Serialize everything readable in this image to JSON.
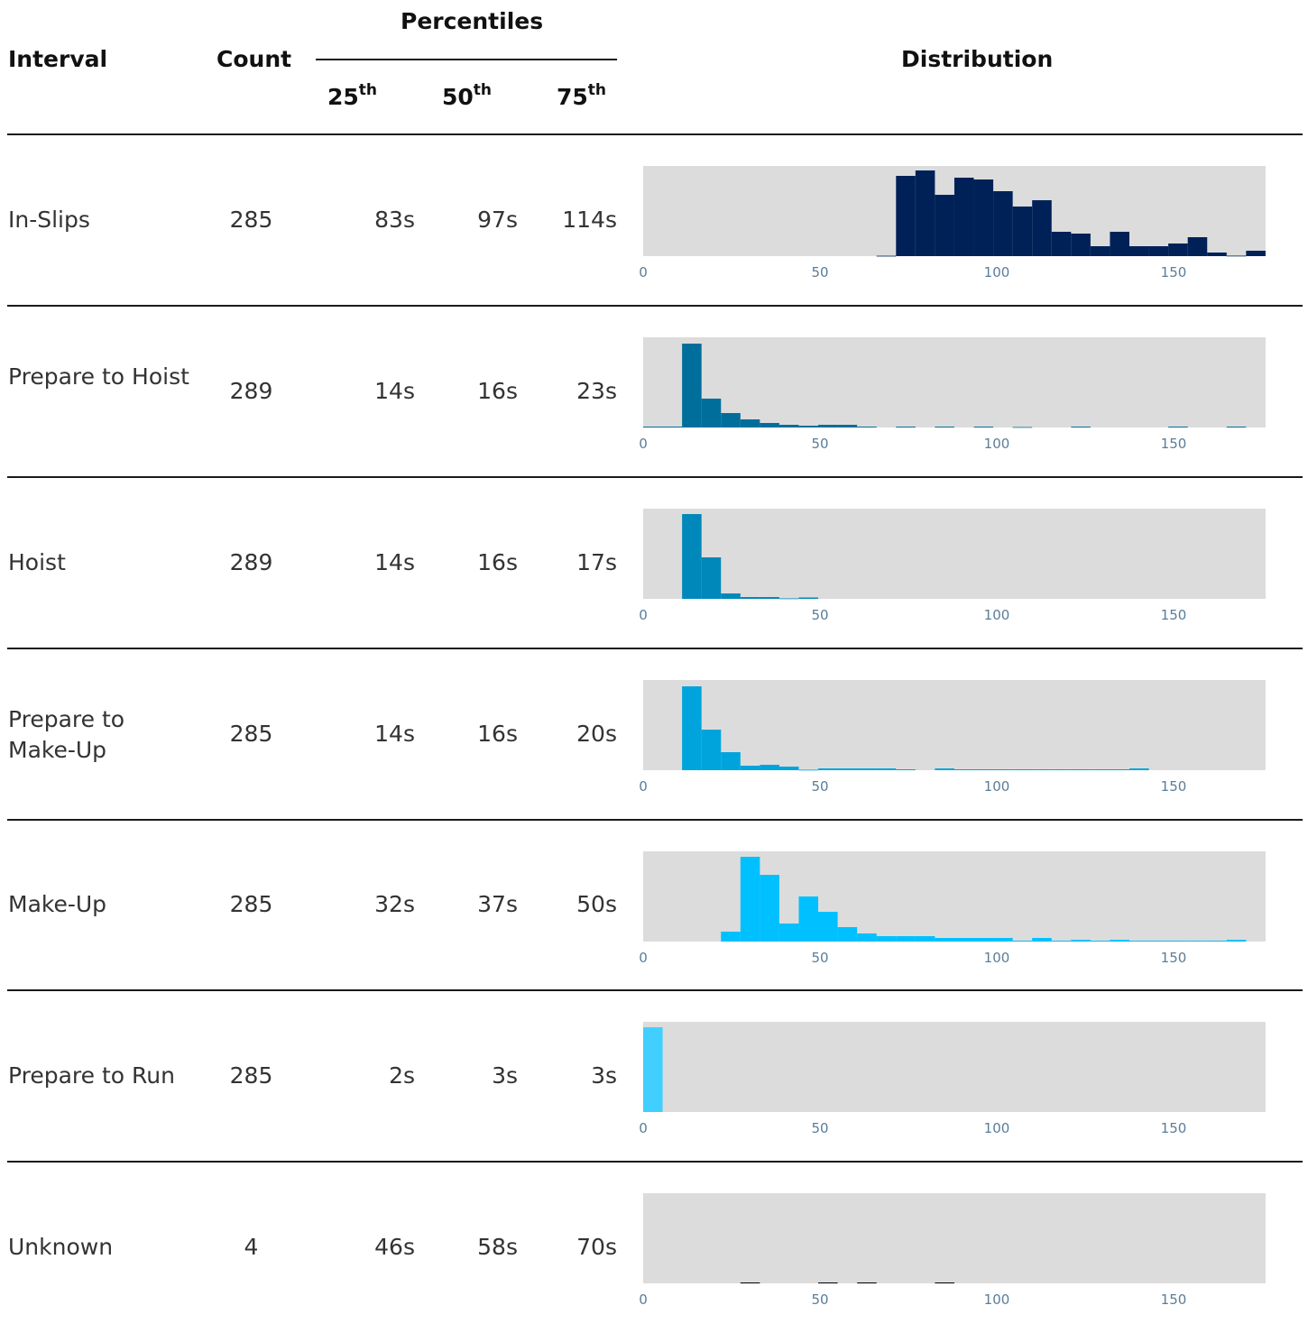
{
  "header": {
    "interval": "Interval",
    "count": "Count",
    "percentiles": "Percentiles",
    "p25_num": "25",
    "p25_sup": "th",
    "p50_num": "50",
    "p50_sup": "th",
    "p75_num": "75",
    "p75_sup": "th",
    "distribution": "Distribution"
  },
  "rows": [
    {
      "name": "In-Slips",
      "count": "285",
      "p25": "83s",
      "p50": "97s",
      "p75": "114s"
    },
    {
      "name": "Prepare to Hoist",
      "count": "289",
      "p25": "14s",
      "p50": "16s",
      "p75": "23s"
    },
    {
      "name": "Hoist",
      "count": "289",
      "p25": "14s",
      "p50": "16s",
      "p75": "17s"
    },
    {
      "name": "Prepare to Make-Up",
      "count": "285",
      "p25": "14s",
      "p50": "16s",
      "p75": "20s"
    },
    {
      "name": "Make-Up",
      "count": "285",
      "p25": "32s",
      "p50": "37s",
      "p75": "50s"
    },
    {
      "name": "Prepare to Run",
      "count": "285",
      "p25": "2s",
      "p50": "3s",
      "p75": "3s"
    },
    {
      "name": "Unknown",
      "count": "4",
      "p25": "46s",
      "p50": "58s",
      "p75": "70s"
    }
  ],
  "chart_data": [
    {
      "type": "bar",
      "title": "In-Slips",
      "color": "#002157",
      "bin_width": 5.5,
      "xlim": [
        0,
        176
      ],
      "x_ticks": [
        0,
        50,
        100,
        150
      ],
      "bins": [
        [
          66,
          0.4
        ],
        [
          71.5,
          89
        ],
        [
          77,
          95
        ],
        [
          82.5,
          68
        ],
        [
          88,
          87
        ],
        [
          93.5,
          85
        ],
        [
          99,
          72
        ],
        [
          104.5,
          55
        ],
        [
          110,
          62
        ],
        [
          115.5,
          27
        ],
        [
          121,
          25
        ],
        [
          126.5,
          11
        ],
        [
          132,
          27
        ],
        [
          137.5,
          11
        ],
        [
          143,
          11
        ],
        [
          148.5,
          14
        ],
        [
          154,
          21
        ],
        [
          159.5,
          4
        ],
        [
          165,
          0.5
        ],
        [
          170.5,
          6
        ]
      ]
    },
    {
      "type": "bar",
      "title": "Prepare to Hoist",
      "color": "#006e9b",
      "bin_width": 5.5,
      "xlim": [
        0,
        176
      ],
      "x_ticks": [
        0,
        50,
        100,
        150
      ],
      "bins": [
        [
          0,
          1
        ],
        [
          5.5,
          1
        ],
        [
          11,
          93
        ],
        [
          16.5,
          32
        ],
        [
          22,
          16
        ],
        [
          27.5,
          9
        ],
        [
          33,
          5
        ],
        [
          38.5,
          3
        ],
        [
          44,
          2
        ],
        [
          49.5,
          3
        ],
        [
          55,
          3
        ],
        [
          60.5,
          1
        ],
        [
          71.5,
          1
        ],
        [
          82.5,
          1
        ],
        [
          93.5,
          1
        ],
        [
          104.5,
          0.5
        ],
        [
          121,
          1
        ],
        [
          148.5,
          1
        ],
        [
          165,
          1
        ]
      ]
    },
    {
      "type": "bar",
      "title": "Hoist",
      "color": "#0088ba",
      "bin_width": 5.5,
      "xlim": [
        0,
        176
      ],
      "x_ticks": [
        0,
        50,
        100,
        150
      ],
      "bins": [
        [
          11,
          94
        ],
        [
          16.5,
          46
        ],
        [
          22,
          6
        ],
        [
          27.5,
          2
        ],
        [
          33,
          2
        ],
        [
          38.5,
          0.5
        ],
        [
          44,
          1.5
        ]
      ]
    },
    {
      "type": "bar",
      "title": "Prepare to Make-Up",
      "color": "#00a4dd",
      "bin_width": 5.5,
      "xlim": [
        0,
        176
      ],
      "x_ticks": [
        0,
        50,
        100,
        150
      ],
      "bins": [
        [
          11,
          93
        ],
        [
          16.5,
          45
        ],
        [
          22,
          20
        ],
        [
          27.5,
          5
        ],
        [
          33,
          6
        ],
        [
          38.5,
          4
        ],
        [
          44,
          0.5
        ],
        [
          49.5,
          2
        ],
        [
          55,
          2
        ],
        [
          60.5,
          2
        ],
        [
          66,
          2
        ],
        [
          71.5,
          1
        ],
        [
          82.5,
          2
        ],
        [
          88,
          1
        ],
        [
          93.5,
          1
        ],
        [
          99,
          1
        ],
        [
          104.5,
          1
        ],
        [
          110,
          1
        ],
        [
          115.5,
          1
        ],
        [
          121,
          1
        ],
        [
          126.5,
          1
        ],
        [
          132,
          1
        ],
        [
          137.5,
          2
        ]
      ]
    },
    {
      "type": "bar",
      "title": "Make-Up",
      "color": "#00c0ff",
      "bin_width": 5.5,
      "xlim": [
        0,
        176
      ],
      "x_ticks": [
        0,
        50,
        100,
        150
      ],
      "bins": [
        [
          22,
          11
        ],
        [
          27.5,
          94
        ],
        [
          33,
          74
        ],
        [
          38.5,
          20
        ],
        [
          44,
          50
        ],
        [
          49.5,
          33
        ],
        [
          55,
          16
        ],
        [
          60.5,
          9
        ],
        [
          66,
          6
        ],
        [
          71.5,
          6
        ],
        [
          77,
          6
        ],
        [
          82.5,
          4
        ],
        [
          88,
          4
        ],
        [
          93.5,
          4
        ],
        [
          99,
          4
        ],
        [
          104.5,
          1
        ],
        [
          110,
          4
        ],
        [
          115.5,
          1
        ],
        [
          121,
          2
        ],
        [
          126.5,
          1
        ],
        [
          132,
          2
        ],
        [
          137.5,
          1
        ],
        [
          143,
          1
        ],
        [
          148.5,
          1
        ],
        [
          154,
          1
        ],
        [
          159.5,
          1
        ],
        [
          165,
          2
        ]
      ]
    },
    {
      "type": "bar",
      "title": "Prepare to Run",
      "color": "#40cfff",
      "bin_width": 5.5,
      "xlim": [
        0,
        176
      ],
      "x_ticks": [
        0,
        50,
        100,
        150
      ],
      "bins": [
        [
          0,
          94
        ]
      ]
    },
    {
      "type": "bar",
      "title": "Unknown",
      "color": "#000000",
      "bin_width": 5.5,
      "xlim": [
        0,
        176
      ],
      "x_ticks": [
        0,
        50,
        100,
        150
      ],
      "bins": [
        [
          27.5,
          1
        ],
        [
          49.5,
          1
        ],
        [
          60.5,
          1
        ],
        [
          82.5,
          1
        ]
      ]
    }
  ]
}
